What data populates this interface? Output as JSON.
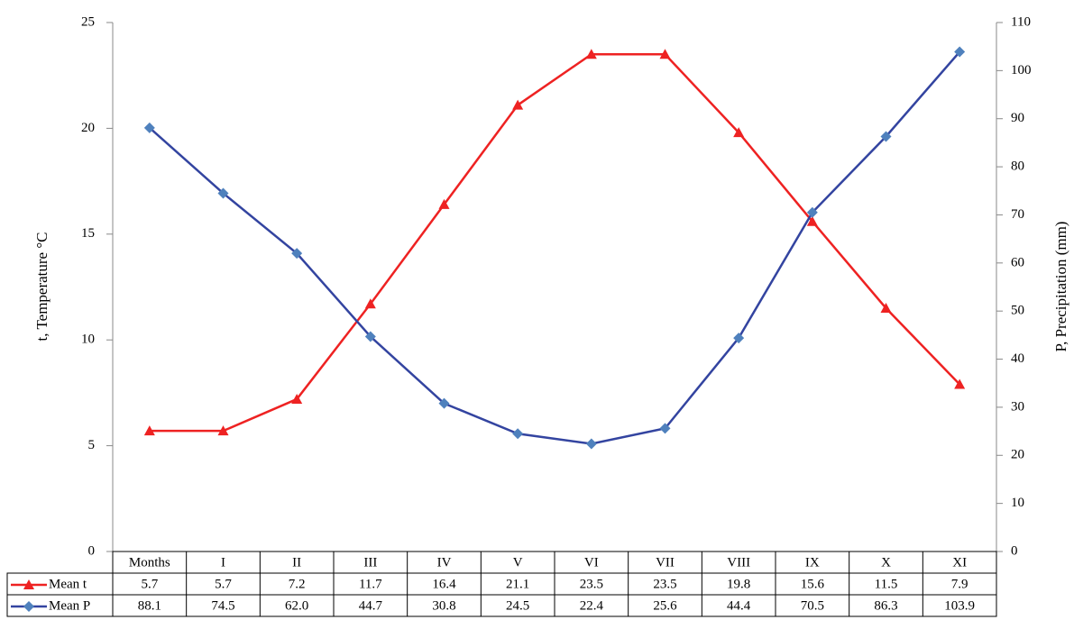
{
  "chart_data": {
    "type": "line",
    "y_label": "t, Temperature °C",
    "y2_label": "P, Precipitation  (mm)",
    "categories": [
      "Months",
      "I",
      "II",
      "III",
      "IV",
      "V",
      "VI",
      "VII",
      "VIII",
      "IX",
      "X",
      "XI"
    ],
    "series": [
      {
        "name": "Mean t",
        "color": "#ee2222",
        "marker": "triangle",
        "values": [
          5.7,
          5.7,
          7.2,
          11.7,
          16.4,
          21.1,
          23.5,
          23.5,
          19.8,
          15.6,
          11.5,
          7.9
        ]
      },
      {
        "name": "Mean P",
        "color": "#3344a0",
        "marker": "diamond",
        "marker_color": "#4f81bd",
        "axis": "y2",
        "values": [
          88.1,
          74.5,
          62.0,
          44.7,
          30.8,
          24.5,
          22.4,
          25.6,
          44.4,
          70.5,
          86.3,
          103.9
        ],
        "value_labels": [
          "88.1",
          "74.5",
          "62.0",
          "44.7",
          "30.8",
          "24.5",
          "22.4",
          "25.6",
          "44.4",
          "70.5",
          "86.3",
          "103.9"
        ]
      }
    ],
    "ylim": [
      0,
      25
    ],
    "yticks": [
      0,
      5,
      10,
      15,
      20,
      25
    ],
    "y2lim": [
      0,
      110
    ],
    "y2ticks": [
      0,
      10,
      20,
      30,
      40,
      50,
      60,
      70,
      80,
      90,
      100,
      110
    ],
    "grid": false
  }
}
